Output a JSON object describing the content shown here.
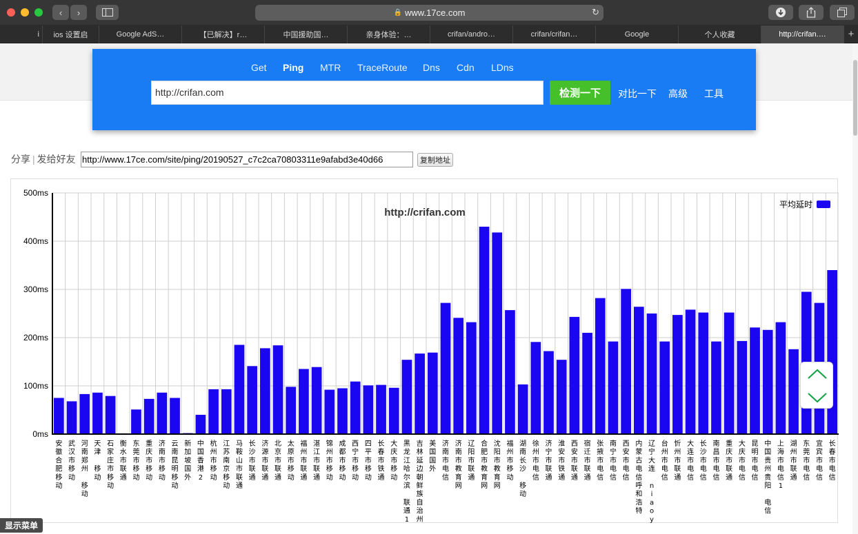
{
  "browser": {
    "url": "www.17ce.com",
    "tabs": [
      "i",
      "ios 设置启",
      "Google AdS…",
      "【已解决】r…",
      "中国援助国…",
      "亲身体验：…",
      "crifan/andro…",
      "crifan/crifan…",
      "Google",
      "个人收藏",
      "http://crifan.…"
    ],
    "active_tab": 10,
    "new_tab_label": "+"
  },
  "tool": {
    "nav": [
      "Get",
      "Ping",
      "MTR",
      "TraceRoute",
      "Dns",
      "Cdn",
      "LDns"
    ],
    "active_nav": "Ping",
    "target_url": "http://crifan.com",
    "run_button": "检测一下",
    "links": [
      "对比一下",
      "高级",
      "工具"
    ]
  },
  "share": {
    "label": "分享",
    "separator": "|",
    "friends_label": "发给好友",
    "link": "http://www.17ce.com/site/ping/20190527_c7c2ca70803311e9afabd3e40d66",
    "copy_button": "复制地址"
  },
  "menu_button": "显示菜单",
  "colors": {
    "bar": "#1a06f0",
    "panel": "#1a7cf5",
    "go_button": "#46c02a"
  },
  "icons": {
    "up": "chevron-up-icon",
    "down": "chevron-down-icon"
  },
  "chart_data": {
    "type": "bar",
    "title": "http://crifan.com",
    "legend": [
      "平均延时"
    ],
    "legend_position": "top-right",
    "y_ticks": [
      "500ms",
      "400ms",
      "300ms",
      "200ms",
      "100ms",
      "0ms"
    ],
    "ylim": [
      0,
      500
    ],
    "grid": true,
    "series": [
      {
        "name": "平均延时",
        "values": [
          75,
          68,
          83,
          86,
          79,
          0,
          51,
          73,
          86,
          75,
          2,
          40,
          93,
          93,
          185,
          141,
          178,
          184,
          98,
          135,
          139,
          92,
          95,
          109,
          101,
          102,
          96,
          154,
          167,
          169,
          272,
          241,
          232,
          430,
          418,
          257,
          103,
          191,
          172,
          154,
          243,
          210,
          282,
          192,
          301,
          264,
          250,
          192,
          247,
          258,
          252,
          192,
          252,
          193,
          221,
          216,
          232,
          176,
          295,
          272,
          340
        ]
      }
    ],
    "categories": [
      [
        "安",
        "徽",
        "合",
        "肥",
        "移",
        "动"
      ],
      [
        "武",
        "汉",
        "市",
        "移",
        "动"
      ],
      [
        "河",
        "南",
        "郑",
        "州",
        "",
        "移",
        "动"
      ],
      [
        "天",
        "津",
        "",
        "移",
        "动"
      ],
      [
        "石",
        "家",
        "庄",
        "市",
        "移",
        "动"
      ],
      [
        "衡",
        "水",
        "市",
        "联",
        "通"
      ],
      [
        "东",
        "莞",
        "市",
        "移",
        "动"
      ],
      [
        "重",
        "庆",
        "市",
        "移",
        "动"
      ],
      [
        "济",
        "南",
        "市",
        "移",
        "动"
      ],
      [
        "云",
        "南",
        "昆",
        "明",
        "移",
        "动"
      ],
      [
        "新",
        "加",
        "坡",
        "国",
        "外"
      ],
      [
        "中",
        "国",
        "香",
        "港",
        "2"
      ],
      [
        "杭",
        "州",
        "市",
        "移",
        "动"
      ],
      [
        "江",
        "苏",
        "南",
        "京",
        "移",
        "动"
      ],
      [
        "马",
        "鞍",
        "山",
        "市",
        "联",
        "通"
      ],
      [
        "长",
        "沙",
        "市",
        "联",
        "通"
      ],
      [
        "济",
        "源",
        "市",
        "联",
        "通"
      ],
      [
        "北",
        "京",
        "市",
        "联",
        "通"
      ],
      [
        "太",
        "原",
        "市",
        "移",
        "动"
      ],
      [
        "福",
        "州",
        "市",
        "联",
        "通"
      ],
      [
        "湛",
        "江",
        "市",
        "联",
        "通"
      ],
      [
        "锦",
        "州",
        "市",
        "移",
        "动"
      ],
      [
        "成",
        "都",
        "市",
        "移",
        "动"
      ],
      [
        "西",
        "宁",
        "市",
        "移",
        "动"
      ],
      [
        "四",
        "平",
        "市",
        "移",
        "动"
      ],
      [
        "长",
        "春",
        "市",
        "铁",
        "通"
      ],
      [
        "大",
        "庆",
        "市",
        "移",
        "动"
      ],
      [
        "黑",
        "龙",
        "江",
        "哈",
        "尔",
        "滨",
        "",
        "联",
        "通",
        "1"
      ],
      [
        "吉",
        "林",
        "延",
        "边",
        "朝",
        "鲜",
        "族",
        "自",
        "治",
        "州"
      ],
      [
        "美",
        "国",
        "国",
        "外"
      ],
      [
        "济",
        "南",
        "市",
        "电",
        "信"
      ],
      [
        "济",
        "南",
        "市",
        "教",
        "育",
        "网"
      ],
      [
        "辽",
        "阳",
        "市",
        "联",
        "通"
      ],
      [
        "合",
        "肥",
        "市",
        "教",
        "育",
        "网"
      ],
      [
        "沈",
        "阳",
        "市",
        "教",
        "育",
        "网"
      ],
      [
        "福",
        "州",
        "市",
        "移",
        "动"
      ],
      [
        "湖",
        "南",
        "长",
        "沙",
        "",
        "移",
        "动"
      ],
      [
        "徐",
        "州",
        "市",
        "电",
        "信"
      ],
      [
        "济",
        "宁",
        "市",
        "联",
        "通"
      ],
      [
        "淮",
        "安",
        "市",
        "铁",
        "通"
      ],
      [
        "西",
        "安",
        "市",
        "联",
        "通"
      ],
      [
        "宿",
        "迁",
        "市",
        "联",
        "通"
      ],
      [
        "张",
        "掖",
        "市",
        "电",
        "信"
      ],
      [
        "南",
        "宁",
        "市",
        "电",
        "信"
      ],
      [
        "西",
        "安",
        "市",
        "电",
        "信"
      ],
      [
        "内",
        "蒙",
        "古",
        "电",
        "信",
        "呼",
        "和",
        "浩",
        "特"
      ],
      [
        "辽",
        "宁",
        "大",
        "连",
        "",
        "n",
        "i",
        "a",
        "o",
        "y"
      ],
      [
        "台",
        "州",
        "市",
        "电",
        "信"
      ],
      [
        "忻",
        "州",
        "市",
        "联",
        "通"
      ],
      [
        "大",
        "连",
        "市",
        "电",
        "信"
      ],
      [
        "长",
        "沙",
        "市",
        "电",
        "信"
      ],
      [
        "南",
        "昌",
        "市",
        "电",
        "信"
      ],
      [
        "重",
        "庆",
        "市",
        "联",
        "通"
      ],
      [
        "大",
        "庆",
        "市",
        "电",
        "信"
      ],
      [
        "昆",
        "明",
        "市",
        "电",
        "信"
      ],
      [
        "中",
        "国",
        "贵",
        "州",
        "贵",
        "阳",
        "",
        "电",
        "信"
      ],
      [
        "上",
        "海",
        "市",
        "电",
        "信",
        "1"
      ],
      [
        "湖",
        "州",
        "市",
        "联",
        "通"
      ],
      [
        "东",
        "莞",
        "市",
        "电",
        "信"
      ],
      [
        "宜",
        "宾",
        "市",
        "电",
        "信"
      ],
      [
        "长",
        "春",
        "市",
        "电",
        "信"
      ]
    ]
  }
}
